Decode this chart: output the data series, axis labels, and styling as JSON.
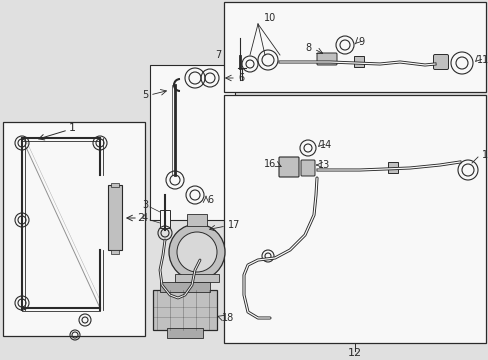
{
  "bg": "#e0e0e0",
  "lc": "#2a2a2a",
  "white": "#f8f8f8",
  "gray": "#c0c0c0",
  "fig_w": 4.89,
  "fig_h": 3.6,
  "dpi": 100
}
